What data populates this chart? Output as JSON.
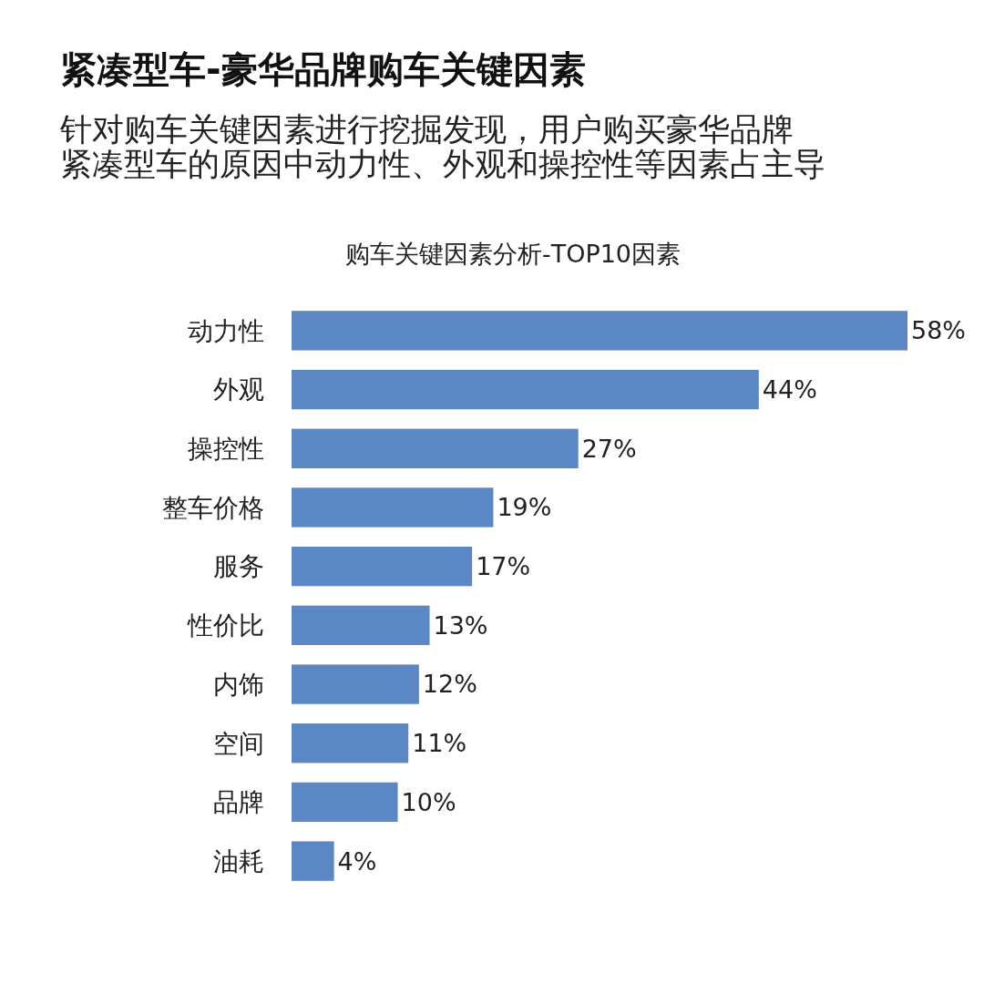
{
  "chart_data": {
    "type": "bar",
    "orientation": "horizontal",
    "title": "紧凑型车-豪华品牌购车关键因素",
    "subtitle": "针对购车关键因素进行挖掘发现，用户购买豪华品牌紧凑型车的原因中动力性、外观和操控性等因素占主导",
    "annotations": [
      "购车关键因素分析-TOP10因素"
    ],
    "categories": [
      "动力性",
      "外观",
      "操控性",
      "整车价格",
      "服务",
      "性价比",
      "内饰",
      "空间",
      "品牌",
      "油耗"
    ],
    "values": [
      58,
      44,
      27,
      19,
      17,
      13,
      12,
      11,
      10,
      4
    ],
    "value_labels": [
      "58%",
      "44%",
      "27%",
      "19%",
      "17%",
      "13%",
      "12%",
      "11%",
      "10%",
      "4%"
    ],
    "color": "#5b87c4"
  }
}
